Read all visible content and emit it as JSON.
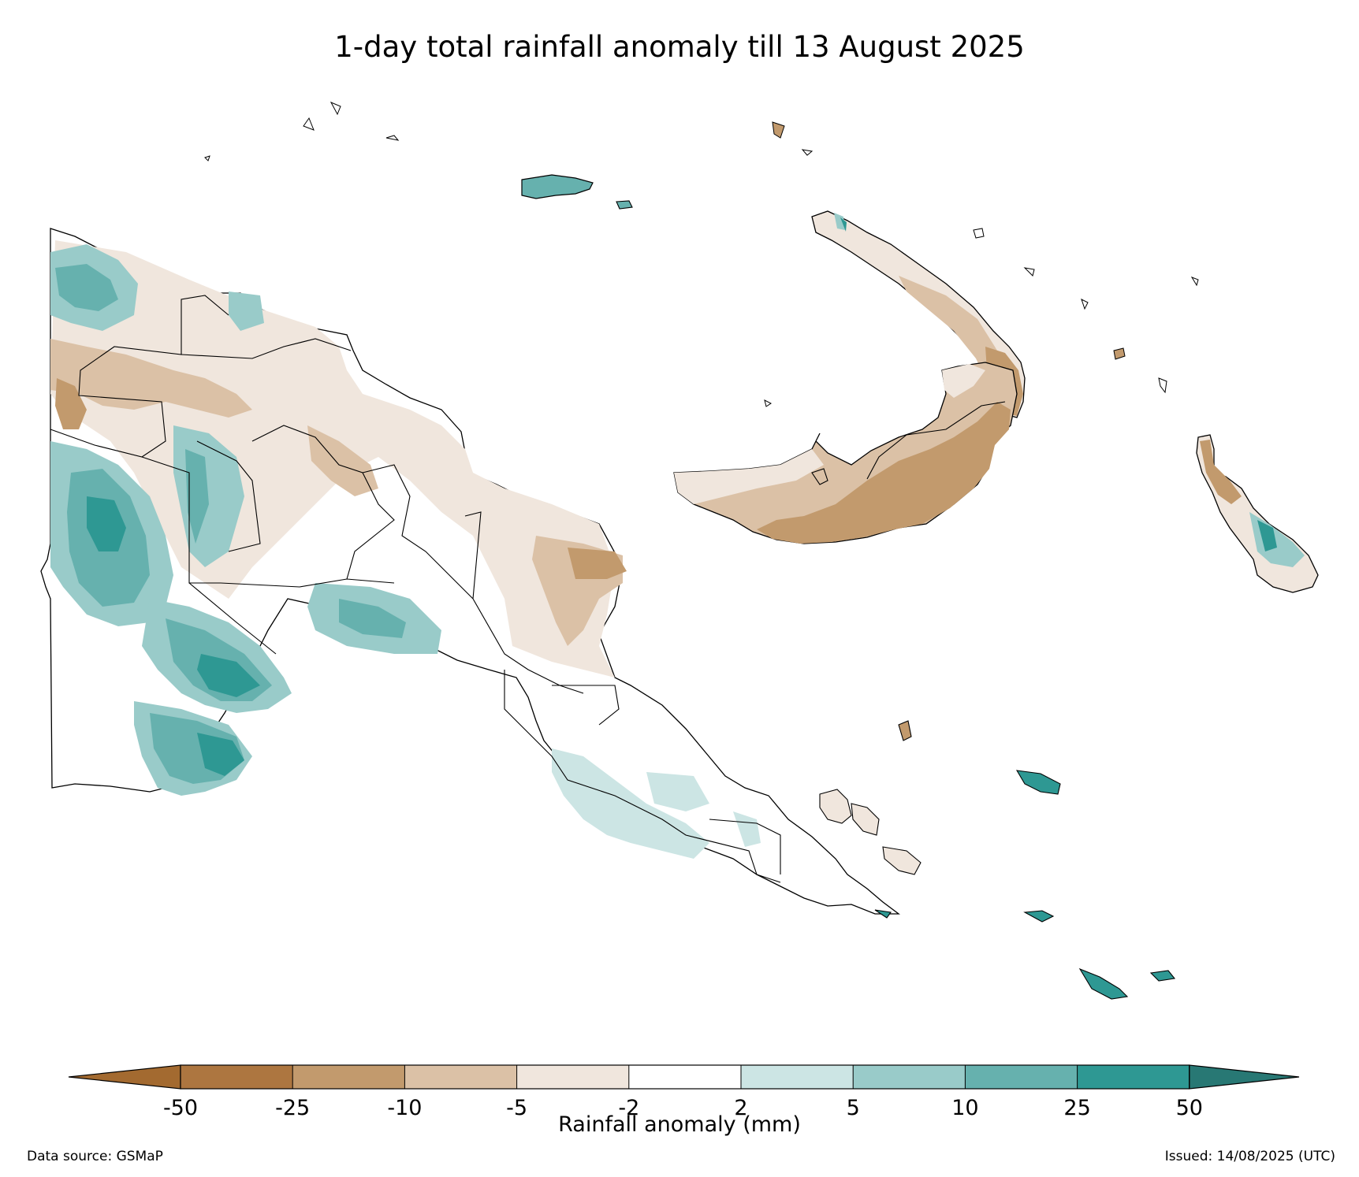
{
  "title": "1-day total rainfall anomaly till 13 August 2025",
  "colorbar": {
    "label": "Rainfall anomaly (mm)",
    "ticks": [
      "-50",
      "-25",
      "-10",
      "-5",
      "-2",
      "2",
      "5",
      "10",
      "25",
      "50"
    ],
    "colors": [
      "#a36a30",
      "#ad7640",
      "#c29a6d",
      "#dbc1a6",
      "#f0e6dd",
      "#ffffff",
      "#cce5e4",
      "#99cbc9",
      "#66b1ae",
      "#2e9893",
      "#287874"
    ]
  },
  "footer": {
    "source": "Data source: GSMaP",
    "issued": "Issued: 14/08/2025 (UTC)"
  }
}
